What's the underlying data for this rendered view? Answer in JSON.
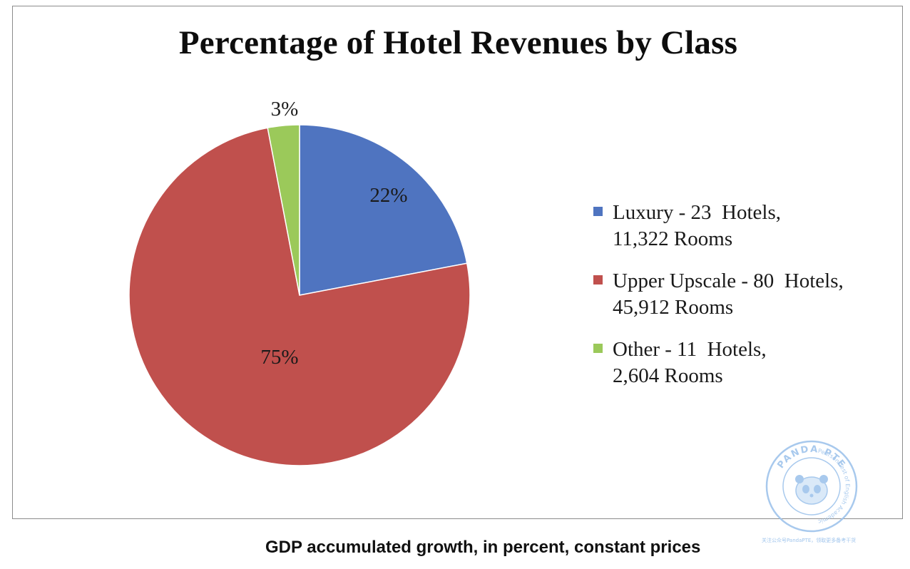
{
  "chart_data": {
    "type": "pie",
    "title": "Percentage of Hotel Revenues by Class",
    "slices": [
      {
        "label": "Luxury - 23  Hotels,\n11,322 Rooms",
        "value": 22,
        "data_label": "22%",
        "color": "#4f74c0"
      },
      {
        "label": "Upper Upscale - 80  Hotels,\n45,912 Rooms",
        "value": 75,
        "data_label": "75%",
        "color": "#c0504d"
      },
      {
        "label": "Other - 11  Hotels,\n2,604 Rooms",
        "value": 3,
        "data_label": "3%",
        "color": "#9bc95a"
      }
    ],
    "legend_position": "right"
  },
  "caption": "GDP accumulated growth, in percent, constant prices",
  "watermark": {
    "top_text": "PANDA PTE",
    "ring_text": "Pearson Test of English Academic",
    "bottom_text": "关注公众号PandaPTE，领取更多备考干货",
    "color": "#9fc4ec"
  }
}
